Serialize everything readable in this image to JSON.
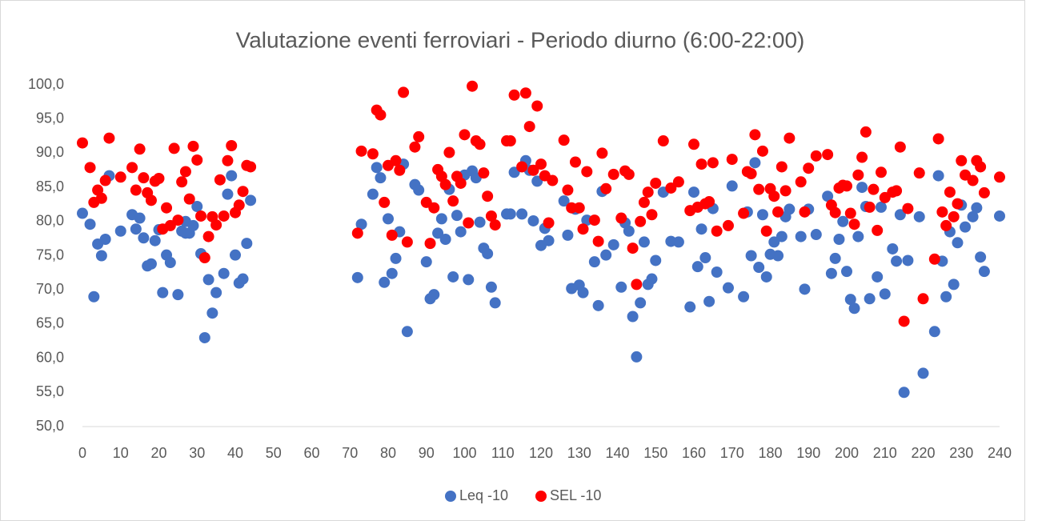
{
  "chart_data": {
    "type": "scatter",
    "title": "Valutazione eventi ferroviari - Periodo diurno (6:00-22:00)",
    "xlim": [
      0,
      240
    ],
    "xticks": [
      0,
      10,
      20,
      30,
      40,
      50,
      60,
      70,
      80,
      90,
      100,
      110,
      120,
      130,
      140,
      150,
      160,
      170,
      180,
      190,
      200,
      210,
      220,
      230,
      240
    ],
    "ylim": [
      50,
      100
    ],
    "yticks": [
      {
        "value": 50,
        "label": "50,0"
      },
      {
        "value": 55,
        "label": "55,0"
      },
      {
        "value": 60,
        "label": "60,0"
      },
      {
        "value": 65,
        "label": "65,0"
      },
      {
        "value": 70,
        "label": "70,0"
      },
      {
        "value": 75,
        "label": "75,0"
      },
      {
        "value": 80,
        "label": "80,0"
      },
      {
        "value": 85,
        "label": "85,0"
      },
      {
        "value": 90,
        "label": "90,0"
      },
      {
        "value": 95,
        "label": "95,0"
      },
      {
        "value": 100,
        "label": "100,0"
      }
    ],
    "grid": false,
    "legend": "bottom",
    "series": [
      {
        "name": "Leq -10",
        "color": "#4472c4",
        "x": [
          0,
          2,
          3,
          4,
          5,
          6,
          7,
          10,
          13,
          14,
          15,
          16,
          17,
          18,
          19,
          20,
          21,
          22,
          23,
          25,
          26,
          27,
          27,
          28,
          29,
          30,
          31,
          32,
          33,
          34,
          35,
          37,
          38,
          39,
          40,
          41,
          42,
          43,
          44,
          72,
          73,
          76,
          77,
          78,
          79,
          80,
          81,
          82,
          83,
          84,
          85,
          87,
          88,
          90,
          91,
          92,
          93,
          94,
          95,
          96,
          97,
          98,
          99,
          100,
          101,
          102,
          103,
          104,
          105,
          106,
          107,
          108,
          111,
          112,
          113,
          115,
          116,
          117,
          118,
          119,
          120,
          121,
          122,
          126,
          127,
          128,
          129,
          130,
          131,
          132,
          134,
          135,
          136,
          137,
          139,
          141,
          142,
          143,
          144,
          145,
          146,
          147,
          148,
          149,
          150,
          152,
          154,
          156,
          159,
          160,
          161,
          162,
          163,
          164,
          165,
          166,
          169,
          170,
          173,
          174,
          175,
          176,
          177,
          178,
          179,
          180,
          181,
          182,
          183,
          184,
          185,
          188,
          189,
          190,
          192,
          195,
          196,
          197,
          198,
          199,
          200,
          201,
          202,
          203,
          204,
          205,
          206,
          208,
          209,
          210,
          212,
          213,
          214,
          215,
          216,
          219,
          220,
          223,
          224,
          225,
          226,
          227,
          228,
          229,
          230,
          231,
          233,
          234,
          235,
          236,
          240
        ],
        "values": [
          81.2,
          79.6,
          69.0,
          76.7,
          75.0,
          77.4,
          86.7,
          78.6,
          81.0,
          78.9,
          80.5,
          77.6,
          73.5,
          73.8,
          77.2,
          78.8,
          69.6,
          75.1,
          74.0,
          69.3,
          78.6,
          78.3,
          80.0,
          78.3,
          79.4,
          82.2,
          75.3,
          63.0,
          71.5,
          66.6,
          69.6,
          72.4,
          84.0,
          86.7,
          75.1,
          71.0,
          71.6,
          76.8,
          83.1,
          71.8,
          79.6,
          84.0,
          87.9,
          86.4,
          71.1,
          80.4,
          72.4,
          74.6,
          78.5,
          88.4,
          63.9,
          85.4,
          84.6,
          74.1,
          68.7,
          69.3,
          78.3,
          80.4,
          77.4,
          84.7,
          71.9,
          80.9,
          78.5,
          86.8,
          71.5,
          87.4,
          86.4,
          79.9,
          76.1,
          75.3,
          70.4,
          68.1,
          81.1,
          81.1,
          87.2,
          81.1,
          88.9,
          87.5,
          80.1,
          85.9,
          76.5,
          79.0,
          77.2,
          83.0,
          78.0,
          70.2,
          81.8,
          70.7,
          69.6,
          80.2,
          74.1,
          67.7,
          84.4,
          75.1,
          76.6,
          70.4,
          79.8,
          78.6,
          66.1,
          60.2,
          68.1,
          77.0,
          70.8,
          71.6,
          74.3,
          84.3,
          77.1,
          77.0,
          67.5,
          84.3,
          73.4,
          78.9,
          74.7,
          68.3,
          81.9,
          72.6,
          70.3,
          85.2,
          69.0,
          81.4,
          75.0,
          88.6,
          73.3,
          81.0,
          71.9,
          75.2,
          77.0,
          75.0,
          77.8,
          80.7,
          81.8,
          77.8,
          70.1,
          81.8,
          78.1,
          83.7,
          72.4,
          74.6,
          77.4,
          80.0,
          72.7,
          68.6,
          67.3,
          77.8,
          85.0,
          82.2,
          68.7,
          71.9,
          82.1,
          69.4,
          76.0,
          74.2,
          81.0,
          55.0,
          74.3,
          80.7,
          57.8,
          63.9,
          86.7,
          74.2,
          69.0,
          78.5,
          70.8,
          76.9,
          82.4,
          79.2,
          80.7,
          82.0,
          74.8,
          72.7,
          80.8
        ]
      },
      {
        "name": "SEL -10",
        "color": "#ff0000",
        "x": [
          0,
          2,
          3,
          4,
          5,
          6,
          7,
          10,
          13,
          14,
          15,
          16,
          17,
          18,
          19,
          20,
          21,
          22,
          23,
          24,
          25,
          26,
          27,
          28,
          29,
          30,
          31,
          32,
          33,
          34,
          35,
          36,
          37,
          38,
          39,
          40,
          41,
          42,
          43,
          44,
          72,
          73,
          76,
          77,
          78,
          79,
          80,
          81,
          82,
          83,
          84,
          85,
          87,
          88,
          90,
          91,
          92,
          93,
          94,
          95,
          96,
          97,
          98,
          99,
          100,
          101,
          102,
          103,
          104,
          105,
          106,
          107,
          108,
          111,
          112,
          113,
          115,
          116,
          117,
          118,
          119,
          120,
          121,
          122,
          123,
          126,
          127,
          128,
          129,
          130,
          131,
          132,
          134,
          135,
          136,
          137,
          139,
          141,
          142,
          143,
          144,
          145,
          146,
          147,
          148,
          149,
          150,
          152,
          154,
          156,
          159,
          160,
          161,
          162,
          163,
          164,
          165,
          166,
          169,
          170,
          173,
          174,
          175,
          176,
          177,
          178,
          179,
          180,
          181,
          182,
          183,
          184,
          185,
          188,
          189,
          190,
          192,
          195,
          196,
          197,
          198,
          199,
          200,
          201,
          202,
          203,
          204,
          205,
          206,
          207,
          208,
          209,
          210,
          212,
          213,
          214,
          215,
          216,
          219,
          220,
          223,
          224,
          225,
          226,
          227,
          228,
          229,
          230,
          231,
          233,
          234,
          235,
          236,
          240
        ],
        "values": [
          91.5,
          87.9,
          82.8,
          84.6,
          83.4,
          86.0,
          92.2,
          86.5,
          87.9,
          84.6,
          90.6,
          86.4,
          84.2,
          83.1,
          85.9,
          86.3,
          78.9,
          82.0,
          79.4,
          90.7,
          80.2,
          85.8,
          87.3,
          83.3,
          91.0,
          89.0,
          80.8,
          74.7,
          77.8,
          80.7,
          79.5,
          86.1,
          80.8,
          88.9,
          91.1,
          81.3,
          82.4,
          84.4,
          88.2,
          88.0,
          78.3,
          90.3,
          89.9,
          96.3,
          95.6,
          82.8,
          88.2,
          78.0,
          88.9,
          87.5,
          98.9,
          77.0,
          90.9,
          92.4,
          82.8,
          76.8,
          82.0,
          87.6,
          86.6,
          85.4,
          90.1,
          83.0,
          86.6,
          85.6,
          92.7,
          79.8,
          99.8,
          91.8,
          91.3,
          87.1,
          83.7,
          80.8,
          79.5,
          91.8,
          91.8,
          98.5,
          88.0,
          98.8,
          93.9,
          87.5,
          96.9,
          88.4,
          86.7,
          79.8,
          86.0,
          91.9,
          84.6,
          82.0,
          88.7,
          82.0,
          78.9,
          87.3,
          80.2,
          77.1,
          90.0,
          84.8,
          86.9,
          80.5,
          87.4,
          86.9,
          76.1,
          70.8,
          80.0,
          82.8,
          84.3,
          81.0,
          85.6,
          91.8,
          84.9,
          85.8,
          81.6,
          91.3,
          82.1,
          88.4,
          82.6,
          82.9,
          88.6,
          78.6,
          79.4,
          89.1,
          81.2,
          87.3,
          87.0,
          92.7,
          84.7,
          90.3,
          78.6,
          84.8,
          83.7,
          81.4,
          88.0,
          84.5,
          92.2,
          85.8,
          81.4,
          87.8,
          89.6,
          89.8,
          82.4,
          81.3,
          84.9,
          85.3,
          85.2,
          81.2,
          79.6,
          86.8,
          89.4,
          93.1,
          82.1,
          84.7,
          78.7,
          87.2,
          83.5,
          84.3,
          84.5,
          90.9,
          65.4,
          81.9,
          87.1,
          68.7,
          74.5,
          92.1,
          81.4,
          79.4,
          84.3,
          80.7,
          82.6,
          88.9,
          86.8,
          86.0,
          88.9,
          88.0,
          84.2,
          86.5
        ]
      }
    ]
  }
}
